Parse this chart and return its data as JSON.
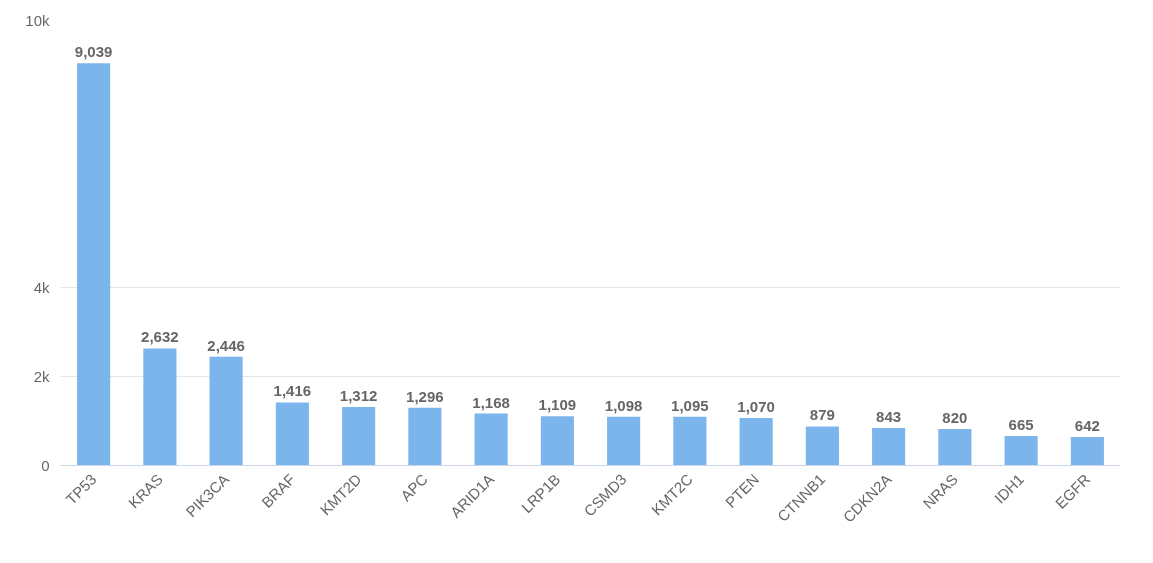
{
  "chart_data": {
    "type": "bar",
    "categories": [
      "TP53",
      "KRAS",
      "PIK3CA",
      "BRAF",
      "KMT2D",
      "APC",
      "ARID1A",
      "LRP1B",
      "CSMD3",
      "KMT2C",
      "PTEN",
      "CTNNB1",
      "CDKN2A",
      "NRAS",
      "IDH1",
      "EGFR"
    ],
    "values": [
      9039,
      2632,
      2446,
      1416,
      1312,
      1296,
      1168,
      1109,
      1098,
      1095,
      1070,
      879,
      843,
      820,
      665,
      642
    ],
    "color": "#7cb5ec",
    "ylim": [
      0,
      10000
    ],
    "yticks": [
      0,
      {
        "value": 2000,
        "label": "2k"
      },
      {
        "value": 4000,
        "label": "4k"
      },
      {
        "value": 10000,
        "label": "10k"
      }
    ],
    "grid": "y",
    "value_labels": [
      "9,039",
      "2,632",
      "2,446",
      "1,416",
      "1,312",
      "1,296",
      "1,168",
      "1,109",
      "1,098",
      "1,095",
      "1,070",
      "879",
      "843",
      "820",
      "665",
      "642"
    ]
  }
}
